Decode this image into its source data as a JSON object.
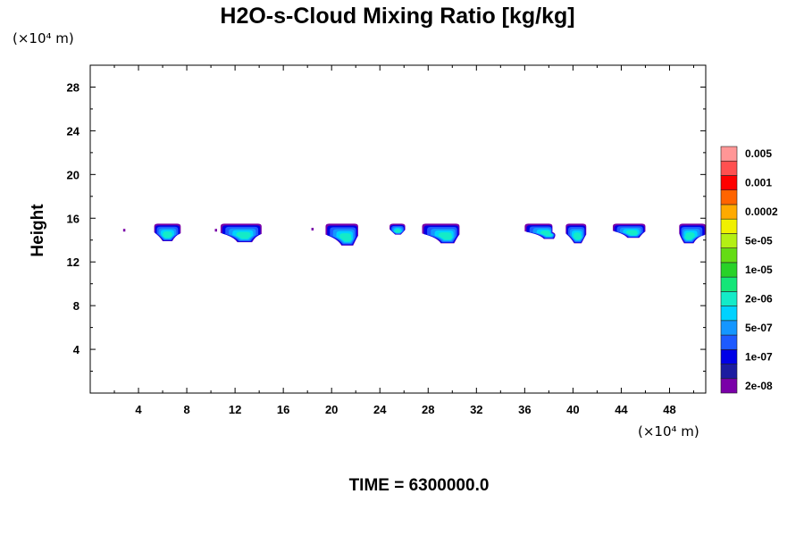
{
  "chart_data": {
    "type": "contour",
    "title": "H2O-s-Cloud Mixing Ratio [kg/kg]",
    "ylabel": "Height",
    "x_unit": "(×10⁴ m)",
    "y_unit": "(×10⁴ m)",
    "footer": "TIME = 6300000.0",
    "xlim": [
      0,
      51
    ],
    "ylim": [
      0,
      30
    ],
    "x_ticks": [
      4,
      8,
      12,
      16,
      20,
      24,
      28,
      32,
      36,
      40,
      44,
      48
    ],
    "y_ticks": [
      4,
      8,
      12,
      16,
      20,
      24,
      28
    ],
    "x_tick_labels": [
      "4",
      "8",
      "12",
      "16",
      "20",
      "24",
      "28",
      "32",
      "36",
      "40",
      "44",
      "48"
    ],
    "y_tick_labels": [
      "4",
      "8",
      "12",
      "16",
      "20",
      "24",
      "28"
    ],
    "colorbar": {
      "colors": [
        "#7a00a8",
        "#1c1ca0",
        "#0000e6",
        "#1e5aff",
        "#1496ff",
        "#00d2ff",
        "#14ebc8",
        "#14e678",
        "#28d228",
        "#64dc14",
        "#b4f014",
        "#f0f000",
        "#ffaa00",
        "#ff6400",
        "#ff0000",
        "#ff5050",
        "#ff9696"
      ],
      "labels": [
        {
          "text": "2e-08",
          "level": 1
        },
        {
          "text": "1e-07",
          "level": 3
        },
        {
          "text": "5e-07",
          "level": 5
        },
        {
          "text": "2e-06",
          "level": 7
        },
        {
          "text": "1e-05",
          "level": 9
        },
        {
          "text": "5e-05",
          "level": 11
        },
        {
          "text": "0.0002",
          "level": 13
        },
        {
          "text": "0.001",
          "level": 15
        },
        {
          "text": "0.005",
          "level": 17
        }
      ]
    },
    "cloud_top_height": 15.5,
    "clouds": [
      {
        "x0": 5.3,
        "x1": 7.5,
        "base": 13.9,
        "core_x": 6.4
      },
      {
        "x0": 10.8,
        "x1": 14.2,
        "base": 13.8,
        "core_x": 12.8
      },
      {
        "x0": 19.5,
        "x1": 22.2,
        "base": 13.5,
        "core_x": 21.3
      },
      {
        "x0": 24.8,
        "x1": 26.1,
        "base": 14.5,
        "core_x": 25.5
      },
      {
        "x0": 27.5,
        "x1": 30.6,
        "base": 13.7,
        "core_x": 29.6
      },
      {
        "x0": 36.0,
        "x1": 38.3,
        "base": 14.1,
        "core_x": 38.0
      },
      {
        "x0": 39.4,
        "x1": 41.1,
        "base": 13.7,
        "core_x": 40.4
      },
      {
        "x0": 43.3,
        "x1": 46.0,
        "base": 14.2,
        "core_x": 45.0
      },
      {
        "x0": 48.8,
        "x1": 51.0,
        "base": 13.7,
        "core_x": 49.6
      }
    ],
    "specks": [
      {
        "x": 2.8,
        "y": 14.9
      },
      {
        "x": 10.4,
        "y": 14.9
      },
      {
        "x": 18.4,
        "y": 15.0
      }
    ]
  }
}
